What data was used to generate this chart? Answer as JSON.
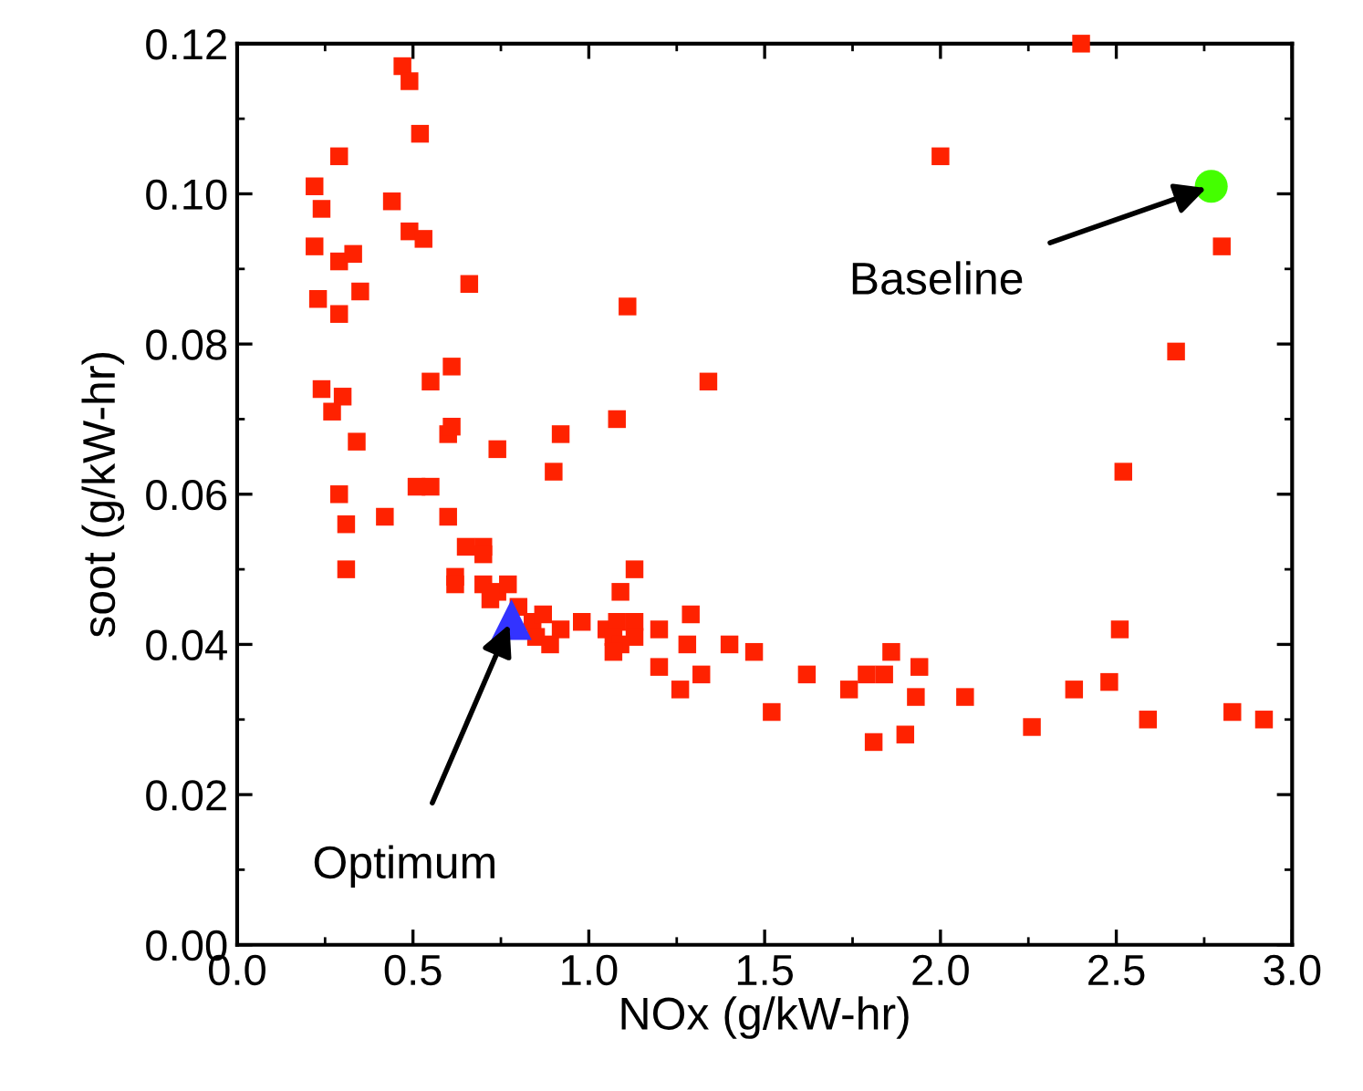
{
  "chart_data": {
    "type": "scatter",
    "xlabel": "NOx (g/kW-hr)",
    "ylabel": "soot (g/kW-hr)",
    "xlim": [
      0,
      3
    ],
    "ylim": [
      0,
      0.12
    ],
    "xticks": [
      {
        "value": 0,
        "label": "0.0"
      },
      {
        "value": 0.5,
        "label": "0.5"
      },
      {
        "value": 1,
        "label": "1.0"
      },
      {
        "value": 1.5,
        "label": "1.5"
      },
      {
        "value": 2,
        "label": "2.0"
      },
      {
        "value": 2.5,
        "label": "2.5"
      },
      {
        "value": 3,
        "label": "3.0"
      }
    ],
    "yticks": [
      {
        "value": 0,
        "label": "0.00"
      },
      {
        "value": 0.02,
        "label": "0.02"
      },
      {
        "value": 0.04,
        "label": "0.04"
      },
      {
        "value": 0.06,
        "label": "0.06"
      },
      {
        "value": 0.08,
        "label": "0.08"
      },
      {
        "value": 0.1,
        "label": "0.10"
      },
      {
        "value": 0.12,
        "label": "0.12"
      }
    ],
    "grid": false,
    "series": [
      {
        "color": "#ff2200",
        "marker": "square",
        "x": [
          0.47,
          0.49,
          0.52,
          0.29,
          0.22,
          0.44,
          0.24,
          0.49,
          0.53,
          0.22,
          0.29,
          0.33,
          0.66,
          0.23,
          0.35,
          0.29,
          1.11,
          0.61,
          0.55,
          1.34,
          0.24,
          0.3,
          0.27,
          0.34,
          0.6,
          0.61,
          0.74,
          1.08,
          0.9,
          0.92,
          0.29,
          0.51,
          0.55,
          0.31,
          0.42,
          0.6,
          0.31,
          0.65,
          0.7,
          0.7,
          0.62,
          0.62,
          0.7,
          0.72,
          0.74,
          0.77,
          0.8,
          0.84,
          0.87,
          0.85,
          0.89,
          0.92,
          0.98,
          1.05,
          1.08,
          1.13,
          1.07,
          1.09,
          1.13,
          1.07,
          1.09,
          1.13,
          1.2,
          1.29,
          1.28,
          1.2,
          1.32,
          1.26,
          1.4,
          1.47,
          1.52,
          1.62,
          1.74,
          1.79,
          1.84,
          1.86,
          1.94,
          1.93,
          1.81,
          1.9,
          2.07,
          2.26,
          2.38,
          2.48,
          2.51,
          2.59,
          2.83,
          2.92,
          2.52,
          2.4,
          2.0,
          2.8,
          2.67
        ],
        "values": [
          0.117,
          0.115,
          0.108,
          0.105,
          0.101,
          0.099,
          0.098,
          0.095,
          0.094,
          0.093,
          0.091,
          0.092,
          0.088,
          0.086,
          0.087,
          0.084,
          0.085,
          0.077,
          0.075,
          0.075,
          0.074,
          0.073,
          0.071,
          0.067,
          0.068,
          0.069,
          0.066,
          0.07,
          0.063,
          0.068,
          0.06,
          0.061,
          0.061,
          0.056,
          0.057,
          0.057,
          0.05,
          0.053,
          0.053,
          0.052,
          0.049,
          0.048,
          0.048,
          0.046,
          0.047,
          0.048,
          0.045,
          0.043,
          0.044,
          0.041,
          0.04,
          0.042,
          0.043,
          0.042,
          0.043,
          0.043,
          0.041,
          0.04,
          0.041,
          0.039,
          0.047,
          0.05,
          0.042,
          0.044,
          0.04,
          0.037,
          0.036,
          0.034,
          0.04,
          0.039,
          0.031,
          0.036,
          0.034,
          0.036,
          0.036,
          0.039,
          0.037,
          0.033,
          0.027,
          0.028,
          0.033,
          0.029,
          0.034,
          0.035,
          0.042,
          0.03,
          0.031,
          0.03,
          0.063,
          0.12,
          0.105,
          0.093,
          0.079
        ]
      },
      {
        "color": "#3333ff",
        "marker": "triangle",
        "x": [
          0.78
        ],
        "values": [
          0.0433
        ]
      },
      {
        "color": "#44ff00",
        "marker": "circle",
        "x": [
          2.77
        ],
        "values": [
          0.101
        ]
      }
    ],
    "annotations": [
      {
        "text": "Optimum",
        "x": 0.78,
        "y": 0.0433
      },
      {
        "text": "Baseline",
        "x": 2.77,
        "y": 0.101
      }
    ]
  }
}
